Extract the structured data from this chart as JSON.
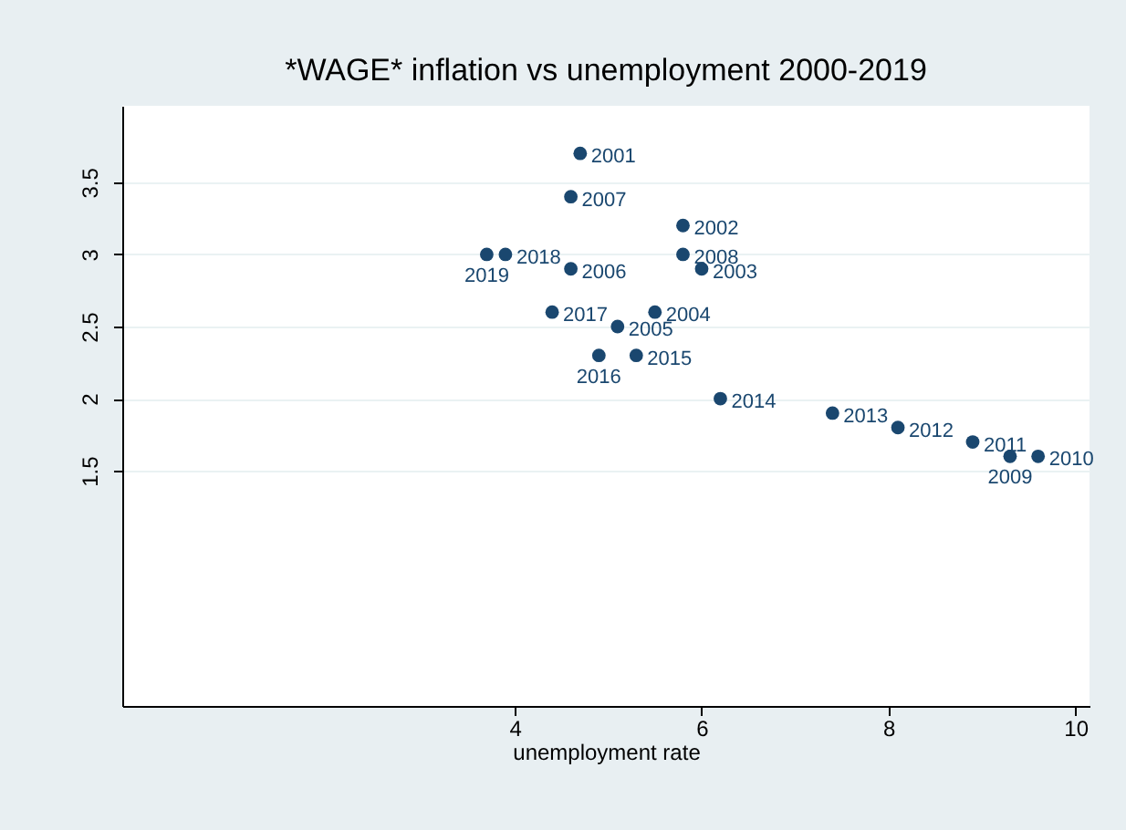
{
  "chart_data": {
    "type": "scatter",
    "title": "*WAGE* inflation vs unemployment 2000-2019",
    "xlabel": "unemployment rate",
    "x": [
      4.7,
      5.8,
      6.0,
      5.5,
      5.1,
      4.6,
      4.6,
      5.8,
      9.3,
      9.6,
      8.9,
      8.1,
      7.4,
      6.2,
      5.3,
      4.9,
      4.4,
      3.9,
      3.7
    ],
    "series": [
      {
        "color": "#1a476f",
        "values": [
          3.7,
          3.2,
          2.9,
          2.6,
          2.5,
          2.9,
          3.4,
          3.0,
          1.6,
          1.6,
          1.7,
          1.8,
          1.9,
          2.0,
          2.3,
          2.3,
          2.6,
          3.0,
          3.0
        ]
      }
    ],
    "annotations": [
      {
        "text": "2001",
        "x": 4.7,
        "y": 3.7
      },
      {
        "text": "2002",
        "x": 5.8,
        "y": 3.2
      },
      {
        "text": "2003",
        "x": 6.0,
        "y": 2.9
      },
      {
        "text": "2004",
        "x": 5.5,
        "y": 2.6
      },
      {
        "text": "2005",
        "x": 5.1,
        "y": 2.5
      },
      {
        "text": "2006",
        "x": 4.6,
        "y": 2.9
      },
      {
        "text": "2007",
        "x": 4.6,
        "y": 3.4
      },
      {
        "text": "2008",
        "x": 5.8,
        "y": 3.0
      },
      {
        "text": "2009",
        "x": 9.3,
        "y": 1.6
      },
      {
        "text": "2010",
        "x": 9.6,
        "y": 1.6
      },
      {
        "text": "2011",
        "x": 8.9,
        "y": 1.7
      },
      {
        "text": "2012",
        "x": 8.1,
        "y": 1.8
      },
      {
        "text": "2013",
        "x": 7.4,
        "y": 1.9
      },
      {
        "text": "2014",
        "x": 6.2,
        "y": 2.0
      },
      {
        "text": "2015",
        "x": 5.3,
        "y": 2.3
      },
      {
        "text": "2016",
        "x": 4.9,
        "y": 2.3
      },
      {
        "text": "2017",
        "x": 4.4,
        "y": 2.6
      },
      {
        "text": "2018",
        "x": 3.9,
        "y": 3.0
      },
      {
        "text": "2019",
        "x": 3.7,
        "y": 3.0
      }
    ],
    "xlim": [
      -0.2,
      10.15
    ],
    "xticks": [
      4,
      6,
      8,
      10
    ],
    "ylim": [
      -0.13,
      4.03
    ],
    "yticks": [
      1.5,
      2,
      2.5,
      3,
      3.5
    ],
    "grid": "y",
    "marker": "circle"
  }
}
